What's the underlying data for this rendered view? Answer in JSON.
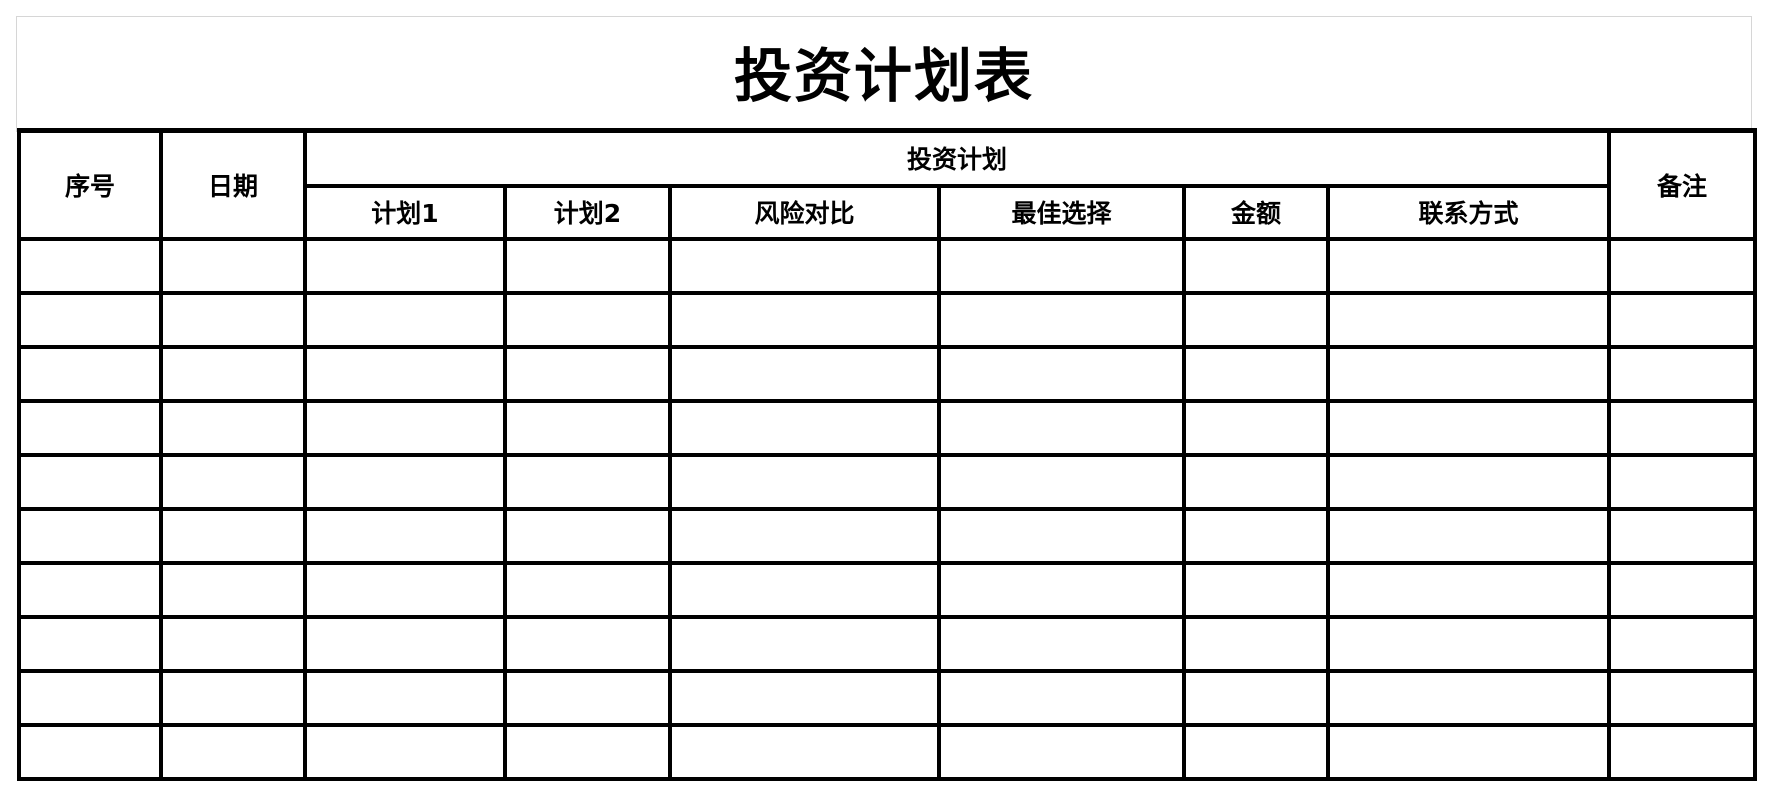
{
  "title": "投资计划表",
  "headers": {
    "index": "序号",
    "date": "日期",
    "group": "投资计划",
    "plan1": "计划1",
    "plan2": "计划2",
    "risk": "风险对比",
    "best": "最佳选择",
    "amount": "金额",
    "contact": "联系方式",
    "remark": "备注"
  },
  "row_count": 10
}
